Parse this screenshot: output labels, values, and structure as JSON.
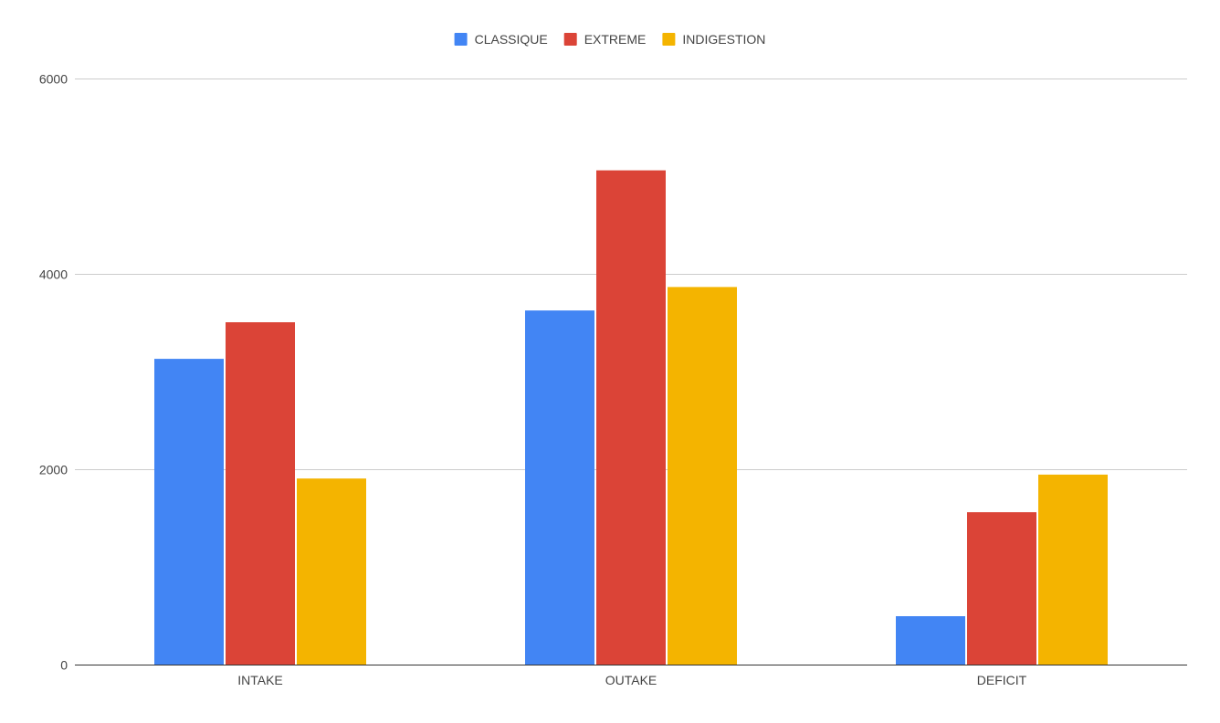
{
  "chart_data": {
    "type": "bar",
    "title": "",
    "xlabel": "",
    "ylabel": "",
    "categories": [
      "INTAKE",
      "OUTAKE",
      "DEFICIT"
    ],
    "series": [
      {
        "name": "CLASSIQUE",
        "color": "#4285f4",
        "values": [
          3130,
          3625,
          495
        ]
      },
      {
        "name": "EXTREME",
        "color": "#db4437",
        "values": [
          3505,
          5060,
          1560
        ]
      },
      {
        "name": "INDIGESTION",
        "color": "#f4b400",
        "values": [
          1905,
          3865,
          1945
        ]
      }
    ],
    "ylim": [
      0,
      6000
    ],
    "yticks": [
      0,
      2000,
      4000,
      6000
    ],
    "grid": true,
    "legend_position": "top-center"
  }
}
